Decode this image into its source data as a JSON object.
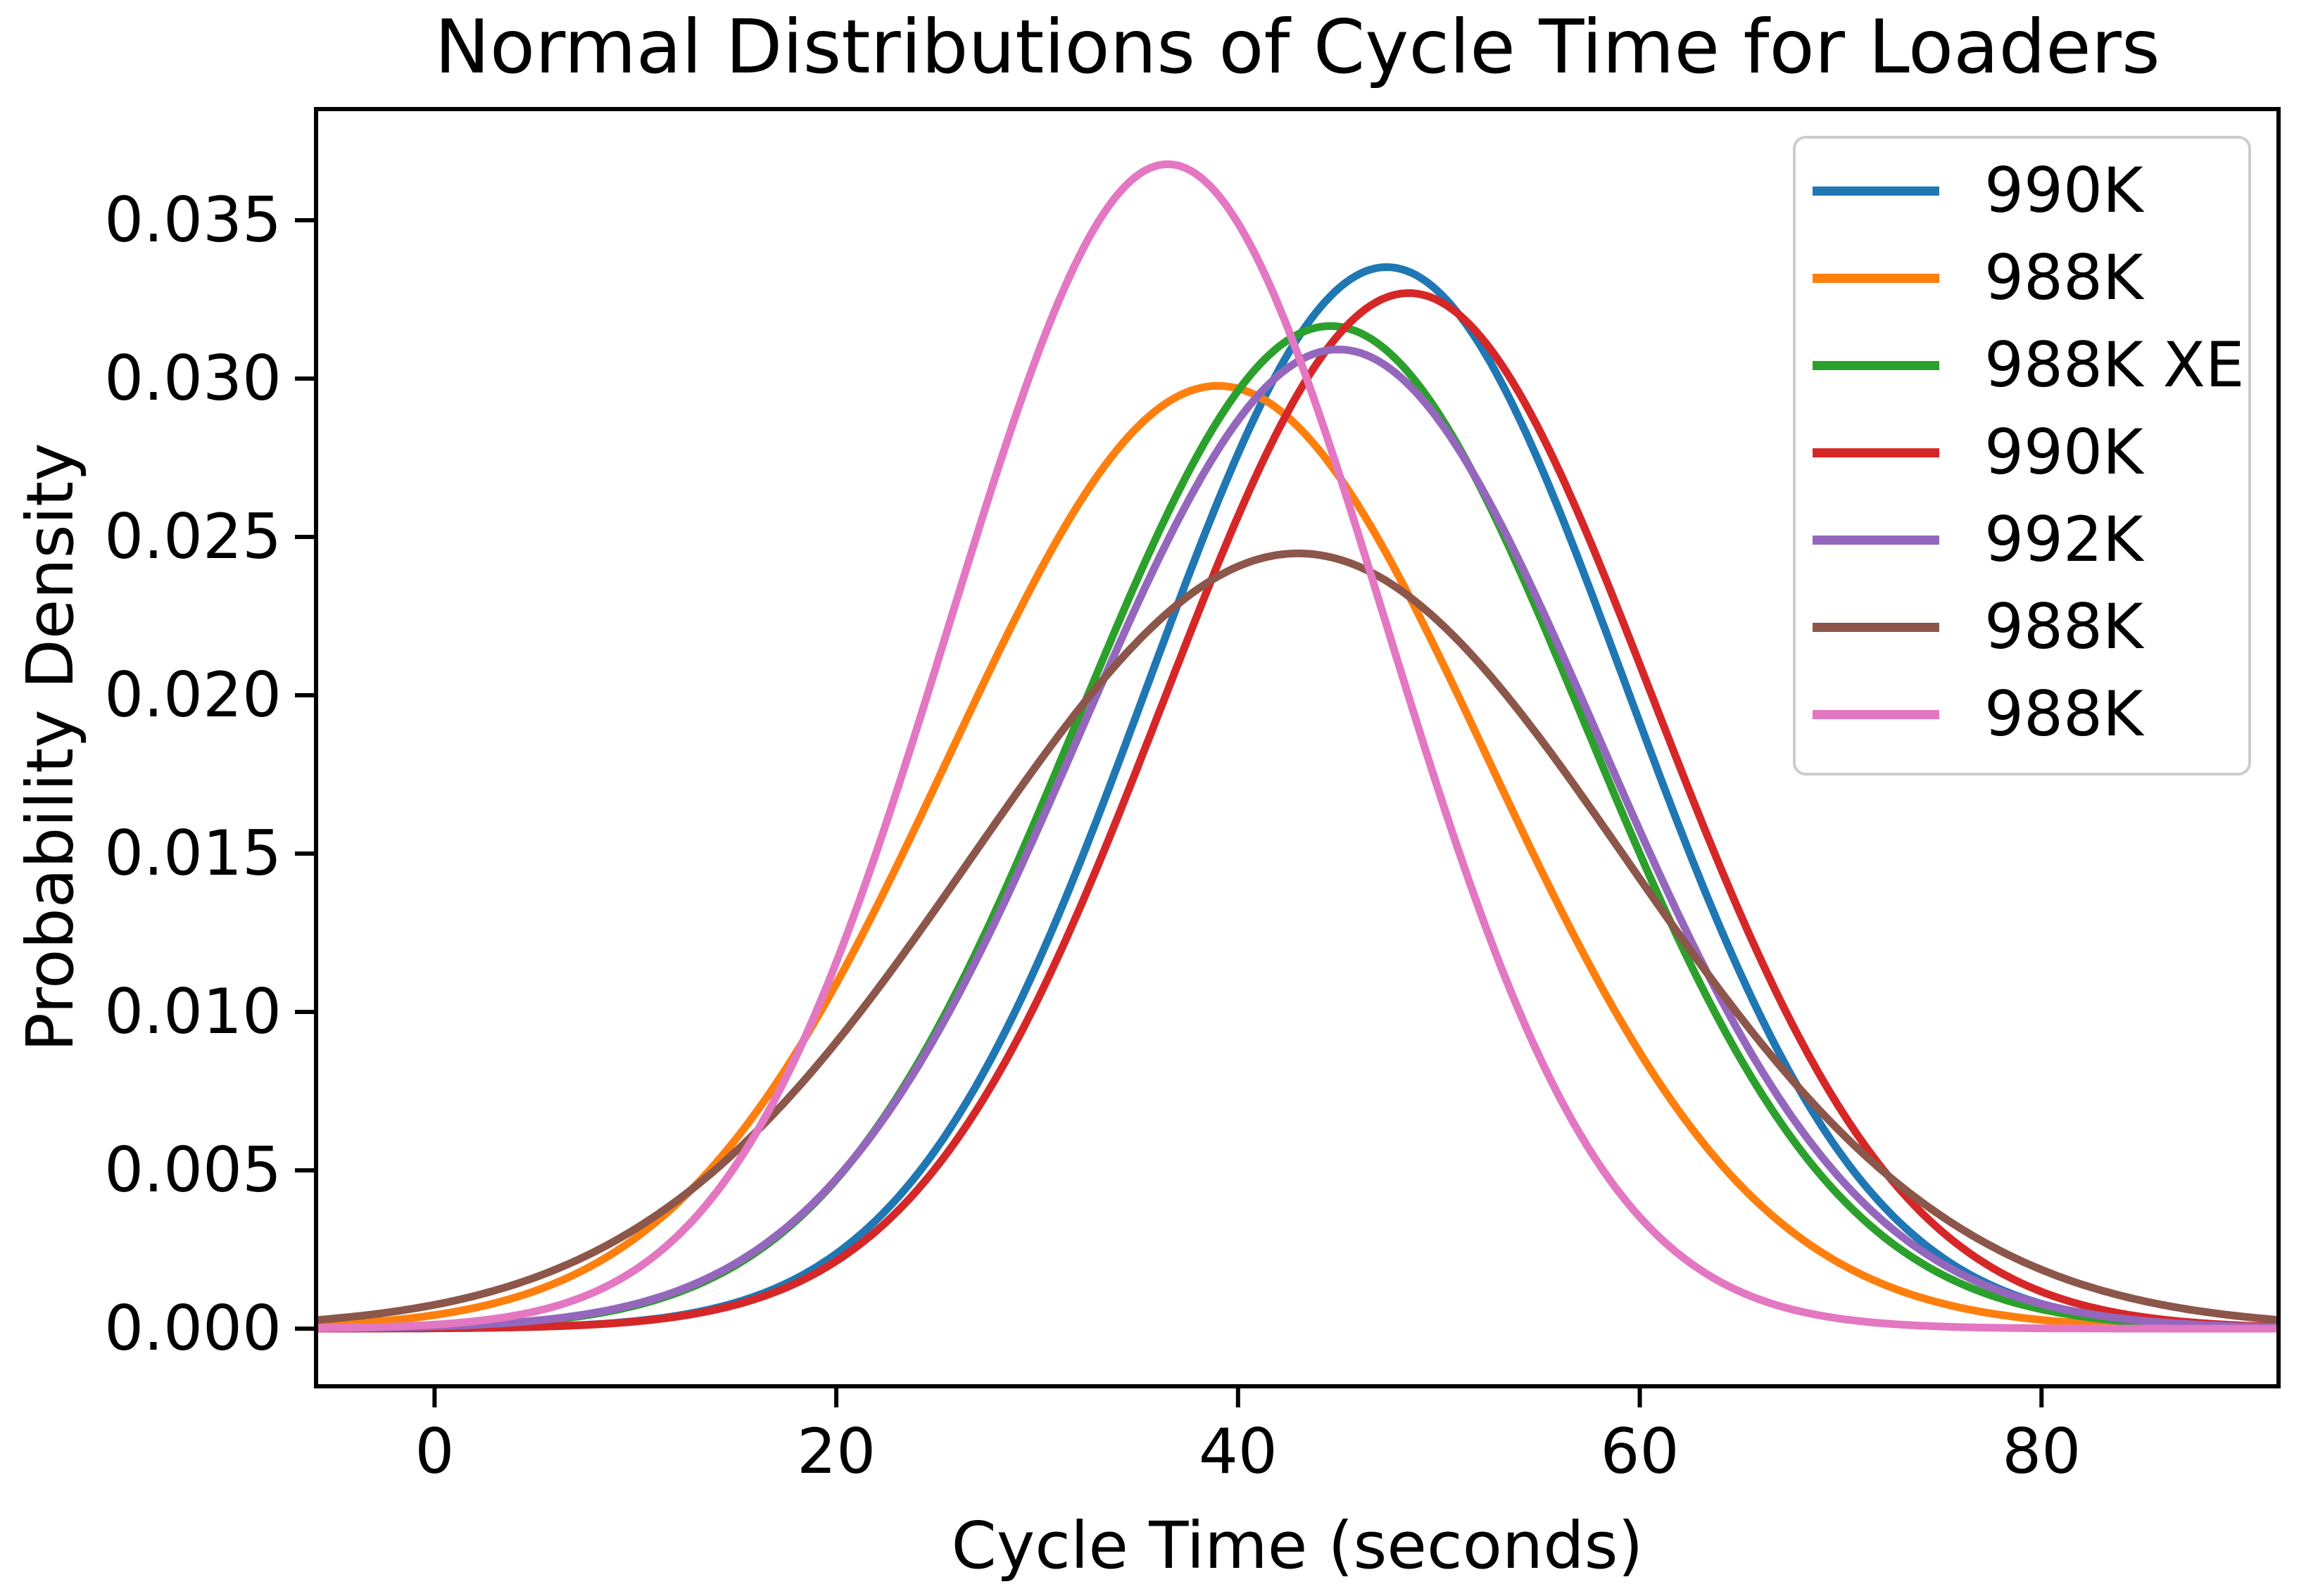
{
  "figure": {
    "background_color": "#ffffff",
    "spine_color": "#000000",
    "text_color": "#000000",
    "legend_border_color": "#cccccc"
  },
  "chart_data": {
    "type": "line",
    "title": "Normal Distributions of Cycle Time for Loaders",
    "xlabel": "Cycle Time (seconds)",
    "ylabel": "Probability Density",
    "xlim": [
      -5.9,
      91.8
    ],
    "ylim": [
      -0.00182,
      0.03851
    ],
    "grid": false,
    "legend_position": "upper right",
    "x_ticks": [
      {
        "value": 0,
        "label": "0"
      },
      {
        "value": 20,
        "label": "20"
      },
      {
        "value": 40,
        "label": "40"
      },
      {
        "value": 60,
        "label": "60"
      },
      {
        "value": 80,
        "label": "80"
      }
    ],
    "y_ticks": [
      {
        "value": 0.0,
        "label": "0.000"
      },
      {
        "value": 0.005,
        "label": "0.005"
      },
      {
        "value": 0.01,
        "label": "0.010"
      },
      {
        "value": 0.015,
        "label": "0.015"
      },
      {
        "value": 0.02,
        "label": "0.020"
      },
      {
        "value": 0.025,
        "label": "0.025"
      },
      {
        "value": 0.03,
        "label": "0.030"
      },
      {
        "value": 0.035,
        "label": "0.035"
      }
    ],
    "series": [
      {
        "name": "990K",
        "color": "#1f77b4",
        "distribution": "normal",
        "mean": 47.4,
        "std": 11.9,
        "peak_density": 0.03352
      },
      {
        "name": "988K",
        "color": "#ff7f0e",
        "distribution": "normal",
        "mean": 39.0,
        "std": 13.4,
        "peak_density": 0.02977
      },
      {
        "name": "988K XE",
        "color": "#2ca02c",
        "distribution": "normal",
        "mean": 44.6,
        "std": 12.6,
        "peak_density": 0.03166
      },
      {
        "name": "990K",
        "color": "#d62728",
        "distribution": "normal",
        "mean": 48.5,
        "std": 12.2,
        "peak_density": 0.0327
      },
      {
        "name": "992K",
        "color": "#9467bd",
        "distribution": "normal",
        "mean": 45.0,
        "std": 12.9,
        "peak_density": 0.03092
      },
      {
        "name": "988K",
        "color": "#8c564b",
        "distribution": "normal",
        "mean": 43.0,
        "std": 16.3,
        "peak_density": 0.02448
      },
      {
        "name": "988K",
        "color": "#e377c2",
        "distribution": "normal",
        "mean": 36.5,
        "std": 10.85,
        "peak_density": 0.03677
      }
    ],
    "legend_entries": [
      "990K",
      "988K",
      "988K XE",
      "990K",
      "992K",
      "988K",
      "988K"
    ]
  }
}
